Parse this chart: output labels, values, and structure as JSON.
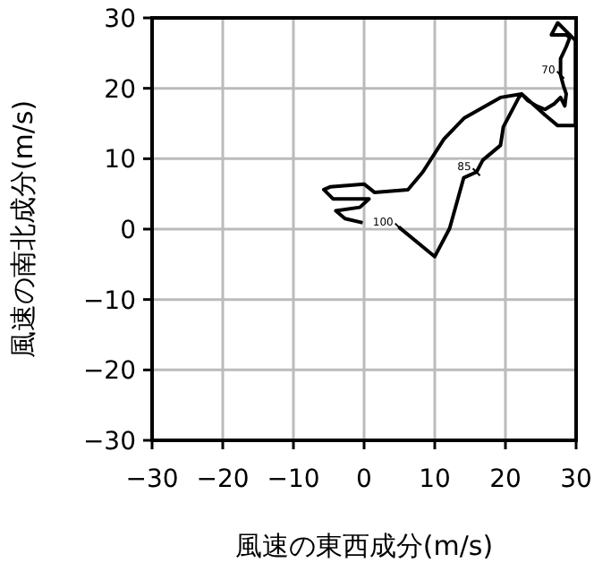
{
  "chart_data": {
    "type": "line",
    "xlabel": "風速の東西成分(m/s)",
    "ylabel": "風速の南北成分(m/s)",
    "xlim": [
      -30,
      30
    ],
    "ylim": [
      -30,
      30
    ],
    "xticks": [
      -30,
      -20,
      -10,
      0,
      10,
      20,
      30
    ],
    "yticks": [
      -30,
      -20,
      -10,
      0,
      10,
      20,
      30
    ],
    "grid": true,
    "marker": "none",
    "line_style": "solid",
    "series": [
      {
        "color": "#000000",
        "x": [
          4.9,
          10.0,
          12.1,
          14.1,
          15.9,
          16.8,
          19.3,
          19.7,
          21.9,
          22.3,
          23.1,
          24.4,
          25.6,
          26.9,
          27.8,
          28.4,
          28.6,
          28.2,
          27.8,
          27.8,
          28.6,
          29.1,
          28.6,
          26.5,
          27.4,
          29.1,
          29.9,
          29.9,
          29.9,
          27.4,
          25.6,
          22.3,
          19.3,
          14.2,
          11.3,
          8.3,
          6.2,
          1.5,
          0.0,
          -4.8,
          -5.7,
          -4.4,
          0.7,
          -0.6,
          -4.0,
          -2.7,
          -0.2
        ],
        "values": [
          0.3,
          -3.9,
          0.1,
          7.3,
          8.1,
          9.8,
          11.9,
          14.5,
          18.7,
          19.2,
          18.3,
          17.5,
          17.0,
          17.8,
          18.7,
          17.5,
          19.2,
          20.4,
          21.9,
          24.2,
          25.9,
          27.2,
          27.6,
          27.6,
          29.3,
          27.6,
          26.8,
          23.8,
          14.7,
          14.7,
          16.2,
          19.2,
          18.7,
          15.8,
          12.8,
          8.1,
          5.6,
          5.2,
          6.4,
          6.0,
          5.6,
          4.3,
          4.3,
          3.1,
          2.6,
          1.5,
          0.9
        ]
      }
    ],
    "annotations": [
      {
        "text": "100",
        "x": 4.9,
        "y": 0.3
      },
      {
        "text": "85",
        "x": 15.9,
        "y": 8.1
      },
      {
        "text": "70",
        "x": 27.8,
        "y": 21.9
      }
    ]
  }
}
